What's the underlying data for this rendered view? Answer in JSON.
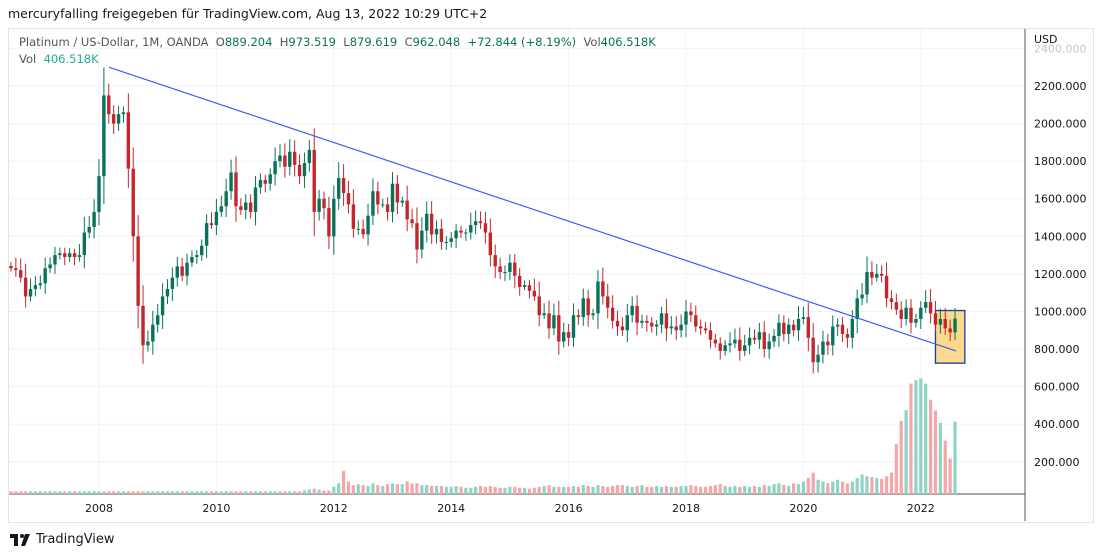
{
  "header": {
    "shared_by": "mercuryfalling freigegeben für TradingView.com, Aug 13, 2022 10:29 UTC+2"
  },
  "legend": {
    "symbol": "Platinum / US-Dollar, 1M, OANDA",
    "o_label": "O",
    "o": "889.204",
    "h_label": "H",
    "h": "973.519",
    "l_label": "L",
    "l": "879.619",
    "c_label": "C",
    "c": "962.048",
    "change": "+72.844 (+8.19%)",
    "vol_label": "Vol",
    "vol": "406.518K"
  },
  "vol_legend": {
    "label": "Vol",
    "value": "406.518K"
  },
  "footer": {
    "brand": "TradingView"
  },
  "colors": {
    "up": "#08735a",
    "down": "#c2272d",
    "vol_up": "#8fd3c5",
    "vol_down": "#f5a6a9",
    "trend": "#3a5ef0",
    "box_fill": "#fcd98f",
    "box_border": "#1a3aa0"
  },
  "chart_data": {
    "type": "candlestick",
    "currency_label": "USD",
    "start": "2006-07",
    "interval": "1M",
    "x_ticks": [
      "2008",
      "2010",
      "2012",
      "2014",
      "2016",
      "2018",
      "2020",
      "2022"
    ],
    "y_ticks": [
      "2400.000",
      "2200.000",
      "2000.000",
      "1800.000",
      "1600.000",
      "1400.000",
      "1200.000",
      "1000.000",
      "800.000",
      "600.000",
      "400.000",
      "200.000"
    ],
    "ylim": [
      0,
      2450
    ],
    "closes": [
      1230,
      1220,
      1180,
      1080,
      1120,
      1140,
      1150,
      1230,
      1250,
      1300,
      1310,
      1290,
      1310,
      1290,
      1300,
      1420,
      1450,
      1530,
      1720,
      2150,
      2050,
      2000,
      2050,
      2060,
      1760,
      1400,
      1030,
      820,
      840,
      930,
      980,
      1080,
      1120,
      1180,
      1240,
      1190,
      1260,
      1290,
      1300,
      1350,
      1470,
      1460,
      1530,
      1560,
      1640,
      1740,
      1560,
      1540,
      1580,
      1530,
      1660,
      1700,
      1680,
      1730,
      1800,
      1830,
      1770,
      1850,
      1780,
      1720,
      1790,
      1860,
      1530,
      1600,
      1550,
      1400,
      1600,
      1710,
      1630,
      1570,
      1440,
      1440,
      1410,
      1510,
      1640,
      1570,
      1570,
      1530,
      1680,
      1580,
      1590,
      1490,
      1470,
      1330,
      1430,
      1520,
      1410,
      1440,
      1370,
      1370,
      1390,
      1430,
      1420,
      1420,
      1460,
      1480,
      1470,
      1420,
      1300,
      1240,
      1210,
      1210,
      1260,
      1190,
      1130,
      1140,
      1110,
      1080,
      980,
      990,
      910,
      980,
      840,
      890,
      860,
      980,
      970,
      1070,
      980,
      990,
      1160,
      1080,
      1020,
      950,
      920,
      900,
      980,
      1030,
      940,
      950,
      940,
      920,
      930,
      990,
      910,
      920,
      900,
      930,
      1000,
      980,
      920,
      910,
      900,
      850,
      830,
      790,
      820,
      830,
      850,
      790,
      820,
      860,
      850,
      890,
      800,
      840,
      870,
      940,
      880,
      930,
      900,
      960,
      970,
      860,
      730,
      770,
      840,
      820,
      920,
      930,
      880,
      860,
      960,
      1070,
      1090,
      1210,
      1180,
      1200,
      1190,
      1070,
      1050,
      1010,
      960,
      1020,
      940,
      960,
      1020,
      1050,
      990,
      930,
      960,
      910,
      889,
      962
    ],
    "volumes_k": [
      15,
      15,
      15,
      15,
      15,
      15,
      15,
      15,
      15,
      15,
      15,
      15,
      15,
      15,
      15,
      15,
      15,
      15,
      15,
      15,
      15,
      15,
      15,
      15,
      15,
      15,
      15,
      15,
      15,
      15,
      15,
      15,
      15,
      15,
      15,
      15,
      15,
      15,
      15,
      15,
      15,
      15,
      15,
      15,
      15,
      15,
      15,
      15,
      15,
      15,
      15,
      15,
      15,
      15,
      15,
      15,
      15,
      15,
      15,
      15,
      20,
      25,
      30,
      25,
      20,
      20,
      40,
      60,
      130,
      70,
      50,
      55,
      50,
      45,
      60,
      50,
      45,
      55,
      60,
      55,
      55,
      70,
      60,
      60,
      50,
      50,
      45,
      45,
      45,
      40,
      40,
      45,
      40,
      35,
      35,
      40,
      45,
      40,
      45,
      40,
      35,
      35,
      40,
      40,
      35,
      35,
      30,
      35,
      40,
      45,
      50,
      40,
      40,
      40,
      40,
      45,
      40,
      50,
      45,
      40,
      50,
      45,
      40,
      45,
      50,
      50,
      45,
      40,
      45,
      50,
      40,
      40,
      45,
      40,
      45,
      40,
      40,
      45,
      45,
      50,
      45,
      40,
      40,
      45,
      50,
      55,
      45,
      40,
      45,
      40,
      45,
      40,
      45,
      40,
      50,
      45,
      55,
      60,
      50,
      45,
      60,
      55,
      70,
      90,
      120,
      80,
      70,
      60,
      70,
      80,
      70,
      60,
      70,
      90,
      110,
      100,
      95,
      90,
      85,
      100,
      120,
      280,
      410,
      470,
      620,
      640,
      650,
      620,
      530,
      470,
      400,
      300,
      200,
      407
    ],
    "trendline": {
      "from": {
        "date": 2008.17,
        "price": 2300
      },
      "to": {
        "date": 2022.6,
        "price": 790
      }
    },
    "highlight_box": {
      "from_date": 2022.25,
      "to_date": 2022.75,
      "price_high": 1005,
      "price_low": 725
    }
  }
}
